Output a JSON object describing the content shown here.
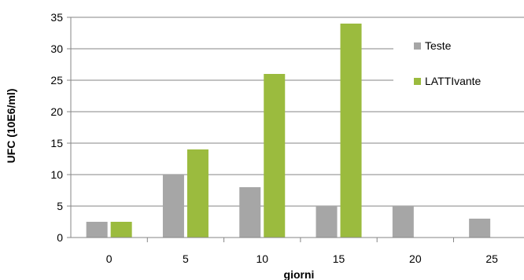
{
  "chart_data": {
    "type": "bar",
    "categories": [
      "0",
      "5",
      "10",
      "15",
      "20",
      "25"
    ],
    "series": [
      {
        "name": "Teste",
        "values": [
          2.5,
          10,
          8,
          5,
          5,
          3
        ]
      },
      {
        "name": "LATTIvante",
        "values": [
          2.5,
          14,
          26,
          34,
          null,
          null
        ]
      }
    ],
    "title": "",
    "xlabel": "giorni",
    "ylabel": "UFC (10E6/ml)",
    "ylim": [
      0,
      35
    ],
    "yticks": [
      0,
      5,
      10,
      15,
      20,
      25,
      30,
      35
    ],
    "grid": true,
    "legend_position": "top-right"
  },
  "colors": {
    "Teste": "#a6a6a6",
    "LATTIvante": "#9bbb3e",
    "grid": "#868686",
    "axis": "#868686"
  }
}
